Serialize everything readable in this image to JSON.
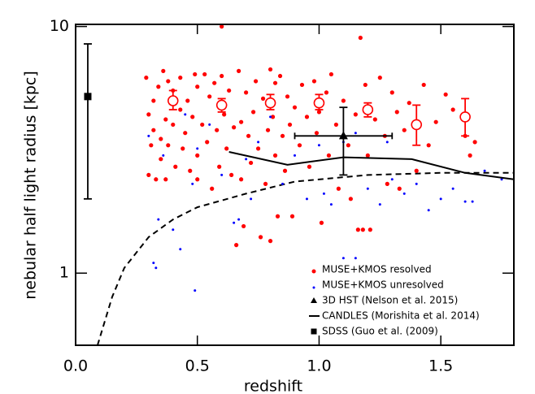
{
  "chart_data": {
    "type": "scatter",
    "xlabel": "redshift",
    "ylabel": "nebular half light radius [kpc]",
    "xlim": [
      0,
      1.8
    ],
    "ylim": [
      0.51,
      10.2
    ],
    "ylog": true,
    "xticks": [
      {
        "value": 0,
        "label": "0.0"
      },
      0.5,
      {
        "value": 1,
        "label": "1.0"
      },
      1.5
    ],
    "yticks": [
      1,
      10
    ],
    "legend": "lower right",
    "series": [
      {
        "name": "MUSE+KMOS resolved",
        "color": "#ff0000",
        "marker": "dot",
        "x": [
          0.29,
          0.3,
          0.3,
          0.31,
          0.32,
          0.32,
          0.33,
          0.34,
          0.35,
          0.35,
          0.36,
          0.37,
          0.37,
          0.38,
          0.38,
          0.4,
          0.4,
          0.41,
          0.43,
          0.43,
          0.44,
          0.45,
          0.46,
          0.47,
          0.48,
          0.49,
          0.5,
          0.5,
          0.5,
          0.52,
          0.53,
          0.54,
          0.55,
          0.56,
          0.57,
          0.58,
          0.59,
          0.6,
          0.6,
          0.61,
          0.62,
          0.63,
          0.64,
          0.65,
          0.66,
          0.67,
          0.68,
          0.68,
          0.69,
          0.7,
          0.71,
          0.72,
          0.73,
          0.74,
          0.75,
          0.76,
          0.77,
          0.78,
          0.79,
          0.8,
          0.8,
          0.81,
          0.82,
          0.82,
          0.83,
          0.84,
          0.85,
          0.86,
          0.87,
          0.88,
          0.89,
          0.9,
          0.92,
          0.93,
          0.95,
          0.96,
          0.98,
          0.99,
          1.0,
          1.01,
          1.03,
          1.04,
          1.05,
          1.07,
          1.08,
          1.1,
          1.12,
          1.13,
          1.15,
          1.16,
          1.17,
          1.18,
          1.19,
          1.2,
          1.21,
          1.23,
          1.25,
          1.27,
          1.28,
          1.3,
          1.32,
          1.33,
          1.35,
          1.37,
          1.4,
          1.43,
          1.45,
          1.48,
          1.52,
          1.55,
          1.6,
          1.62,
          1.64
        ],
        "values": [
          6.2,
          4.4,
          2.5,
          3.3,
          5.0,
          3.8,
          2.4,
          5.7,
          3.5,
          2.9,
          6.6,
          4.2,
          2.4,
          6.0,
          3.3,
          5.5,
          4.0,
          2.7,
          6.2,
          4.6,
          3.2,
          3.7,
          5.0,
          2.6,
          4.3,
          6.4,
          5.7,
          3.0,
          2.4,
          4.0,
          6.4,
          3.4,
          5.2,
          2.2,
          5.9,
          3.8,
          2.7,
          6.3,
          10.0,
          4.4,
          3.2,
          5.5,
          2.5,
          3.9,
          1.3,
          6.6,
          4.1,
          2.4,
          1.55,
          5.4,
          3.6,
          2.8,
          4.5,
          6.0,
          3.2,
          1.4,
          5.1,
          2.3,
          3.8,
          6.7,
          1.35,
          4.3,
          5.9,
          3.0,
          1.7,
          6.3,
          3.6,
          2.6,
          5.2,
          4.0,
          1.7,
          4.7,
          3.3,
          5.8,
          4.3,
          2.7,
          6.0,
          3.7,
          4.5,
          1.6,
          5.4,
          3.0,
          6.4,
          4.0,
          2.2,
          5.0,
          3.3,
          2.0,
          4.4,
          1.5,
          9.0,
          1.5,
          5.8,
          3.0,
          1.5,
          4.2,
          6.2,
          3.6,
          2.3,
          5.4,
          4.5,
          2.2,
          3.8,
          4.9,
          2.6,
          5.8,
          3.3,
          4.1,
          5.3,
          4.6,
          3.6,
          3.0,
          3.4
        ]
      },
      {
        "name": "MUSE+KMOS unresolved",
        "color": "#0000ff",
        "marker": "smalldot",
        "x": [
          0.3,
          0.32,
          0.33,
          0.34,
          0.36,
          0.4,
          0.43,
          0.45,
          0.48,
          0.49,
          0.5,
          0.55,
          0.6,
          0.65,
          0.67,
          0.7,
          0.72,
          0.75,
          0.8,
          0.85,
          0.9,
          0.95,
          1.0,
          1.02,
          1.05,
          1.1,
          1.15,
          1.2,
          1.25,
          1.28,
          1.3,
          1.35,
          1.4,
          1.45,
          1.5,
          1.55,
          1.6,
          1.63,
          1.68,
          1.75,
          1.1,
          1.15
        ],
        "values": [
          3.6,
          1.1,
          1.05,
          1.65,
          3.0,
          1.5,
          1.25,
          4.4,
          2.3,
          0.85,
          3.2,
          4.0,
          2.5,
          1.6,
          1.65,
          2.9,
          2.0,
          3.4,
          4.3,
          2.3,
          3.0,
          2.0,
          3.3,
          2.1,
          1.9,
          3.4,
          3.7,
          2.2,
          1.9,
          3.4,
          2.4,
          2.1,
          2.3,
          1.8,
          2.0,
          2.2,
          1.95,
          1.95,
          2.6,
          2.4,
          1.15,
          1.15
        ]
      },
      {
        "name": "3D HST (Nelson et al. 2015)",
        "color": "#000000",
        "marker": "triangle",
        "x": [
          1.1
        ],
        "values": [
          3.6
        ],
        "xerr": [
          0.2
        ],
        "ylow": [
          2.5
        ],
        "yhigh": [
          4.7
        ]
      },
      {
        "name": "CANDLES (Morishita et al. 2014)",
        "color": "#000000",
        "marker": "line",
        "x": [
          0.63,
          0.87,
          1.1,
          1.38,
          1.6,
          1.8
        ],
        "values": [
          3.1,
          2.75,
          2.95,
          2.9,
          2.55,
          2.4
        ]
      },
      {
        "name": "SDSS (Guo et al. (2009)",
        "color": "#000000",
        "marker": "square",
        "x": [
          0.05
        ],
        "values": [
          5.2
        ],
        "ylow": [
          2.0
        ],
        "yhigh": [
          8.5
        ]
      }
    ],
    "medians": {
      "color": "#ff0000",
      "x": [
        0.4,
        0.6,
        0.8,
        1.0,
        1.2,
        1.4,
        1.6
      ],
      "values": [
        5.0,
        4.8,
        4.9,
        4.9,
        4.6,
        4.0,
        4.3
      ],
      "ylow": [
        4.6,
        4.5,
        4.6,
        4.6,
        4.3,
        3.3,
        3.6
      ],
      "yhigh": [
        5.5,
        5.1,
        5.3,
        5.3,
        4.9,
        4.8,
        5.1
      ]
    },
    "model_curve": {
      "color": "#000000",
      "dash": true,
      "x": [
        0.09,
        0.15,
        0.2,
        0.3,
        0.4,
        0.5,
        0.7,
        0.9,
        1.2,
        1.5,
        1.8
      ],
      "values": [
        0.51,
        0.8,
        1.05,
        1.4,
        1.65,
        1.85,
        2.1,
        2.35,
        2.5,
        2.55,
        2.55
      ]
    }
  }
}
